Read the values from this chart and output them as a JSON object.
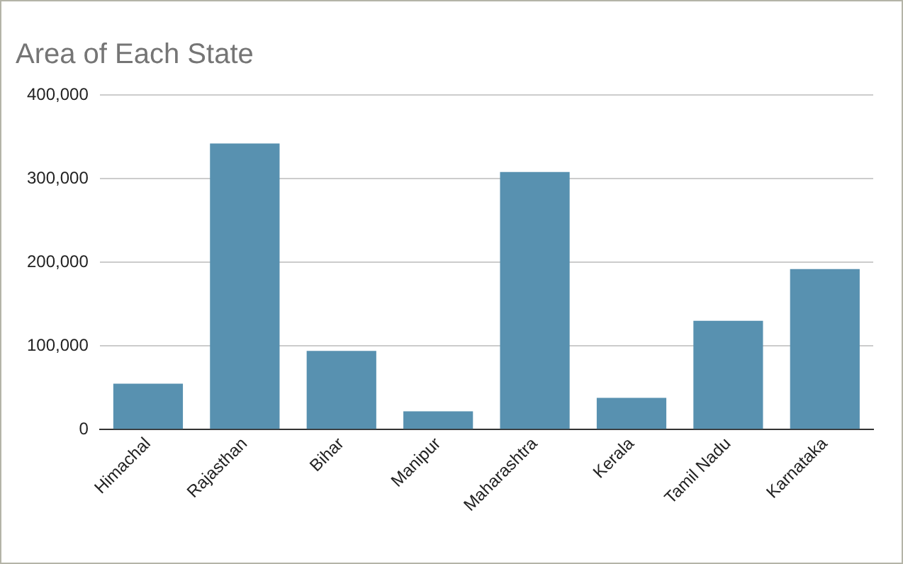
{
  "chart_data": {
    "type": "bar",
    "title": "Area of Each State",
    "categories": [
      "Himachal",
      "Rajasthan",
      "Bihar",
      "Manipur",
      "Maharashtra",
      "Kerala",
      "Tamil Nadu",
      "Karnataka"
    ],
    "values": [
      55000,
      342000,
      94000,
      22000,
      308000,
      38000,
      130000,
      192000
    ],
    "color": "#5891b0",
    "ylim": [
      0,
      400000
    ],
    "yticks": [
      0,
      {
        "value": 100000,
        "label": "100,000"
      },
      {
        "value": 200000,
        "label": "200,000"
      },
      {
        "value": 300000,
        "label": "300,000"
      },
      {
        "value": 400000,
        "label": "400,000"
      }
    ],
    "grid": "y",
    "legend": false
  }
}
